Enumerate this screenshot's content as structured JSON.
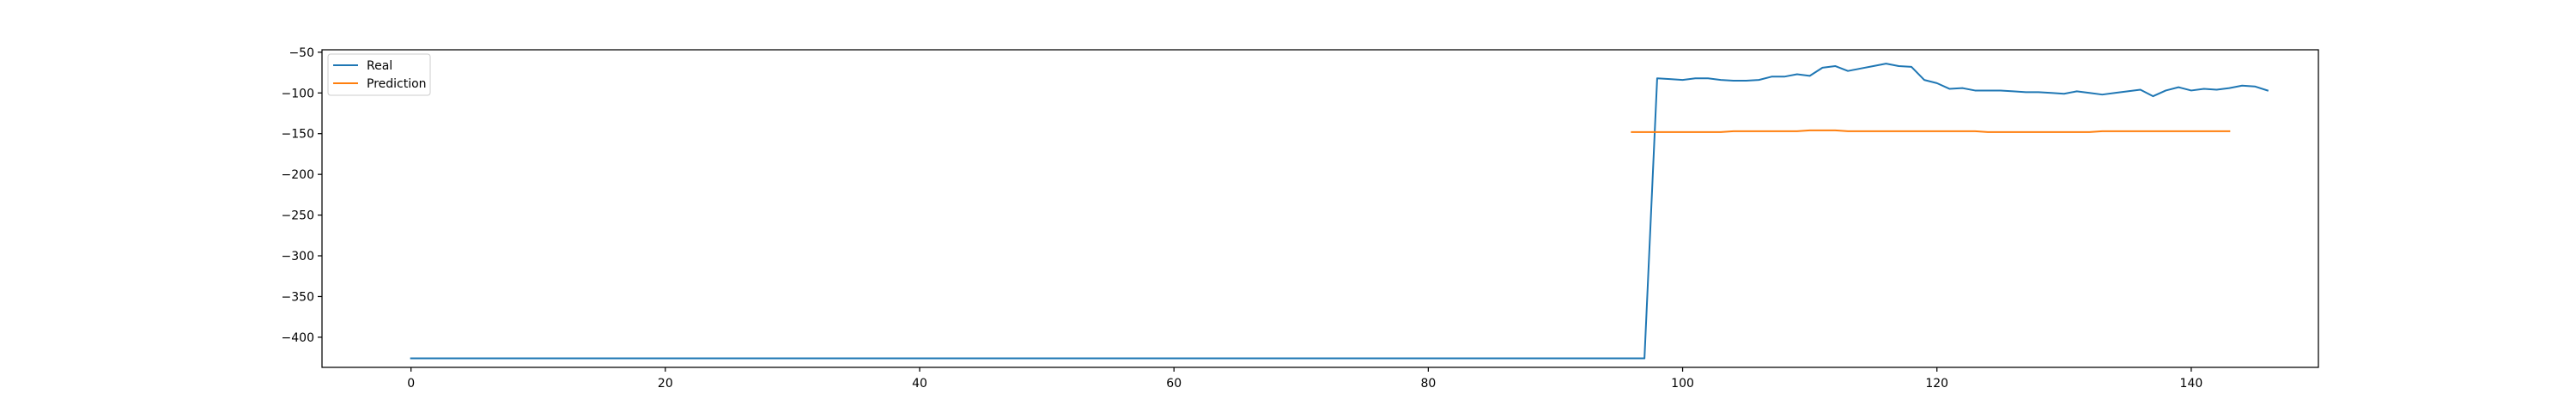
{
  "chart_data": {
    "type": "line",
    "title": "",
    "xlabel": "",
    "ylabel": "",
    "xlim": [
      -7,
      150
    ],
    "ylim": [
      -437,
      -47
    ],
    "xticks": [
      0,
      20,
      40,
      60,
      80,
      100,
      120,
      140
    ],
    "yticks": [
      -50,
      -100,
      -150,
      -200,
      -250,
      -300,
      -350,
      -400
    ],
    "grid": false,
    "legend": {
      "placement": "top-left"
    },
    "series": [
      {
        "name": "Real",
        "color": "#1f77b4",
        "x_start": 0,
        "values": [
          -426,
          -426,
          -426,
          -426,
          -426,
          -426,
          -426,
          -426,
          -426,
          -426,
          -426,
          -426,
          -426,
          -426,
          -426,
          -426,
          -426,
          -426,
          -426,
          -426,
          -426,
          -426,
          -426,
          -426,
          -426,
          -426,
          -426,
          -426,
          -426,
          -426,
          -426,
          -426,
          -426,
          -426,
          -426,
          -426,
          -426,
          -426,
          -426,
          -426,
          -426,
          -426,
          -426,
          -426,
          -426,
          -426,
          -426,
          -426,
          -426,
          -426,
          -426,
          -426,
          -426,
          -426,
          -426,
          -426,
          -426,
          -426,
          -426,
          -426,
          -426,
          -426,
          -426,
          -426,
          -426,
          -426,
          -426,
          -426,
          -426,
          -426,
          -426,
          -426,
          -426,
          -426,
          -426,
          -426,
          -426,
          -426,
          -426,
          -426,
          -426,
          -426,
          -426,
          -426,
          -426,
          -426,
          -426,
          -426,
          -426,
          -426,
          -426,
          -426,
          -426,
          -426,
          -426,
          -426,
          -426,
          -426,
          -82,
          -83,
          -84,
          -82,
          -82,
          -84,
          -85,
          -85,
          -84,
          -80,
          -80,
          -77,
          -79,
          -69,
          -67,
          -73,
          -70,
          -67,
          -64,
          -67,
          -68,
          -84,
          -88,
          -95,
          -94,
          -97,
          -97,
          -97,
          -98,
          -99,
          -99,
          -100,
          -101,
          -98,
          -100,
          -102,
          -100,
          -98,
          -96,
          -104,
          -97,
          -93,
          -97,
          -95,
          -96,
          -94,
          -91,
          -92,
          -97
        ]
      },
      {
        "name": "Prediction",
        "color": "#ff7f0e",
        "x_start": 96,
        "values": [
          -148,
          -148,
          -148,
          -148,
          -148,
          -148,
          -148,
          -148,
          -147,
          -147,
          -147,
          -147,
          -147,
          -147,
          -146,
          -146,
          -146,
          -147,
          -147,
          -147,
          -147,
          -147,
          -147,
          -147,
          -147,
          -147,
          -147,
          -147,
          -148,
          -148,
          -148,
          -148,
          -148,
          -148,
          -148,
          -148,
          -148,
          -147,
          -147,
          -147,
          -147,
          -147,
          -147,
          -147,
          -147,
          -147,
          -147,
          -147
        ]
      }
    ]
  }
}
